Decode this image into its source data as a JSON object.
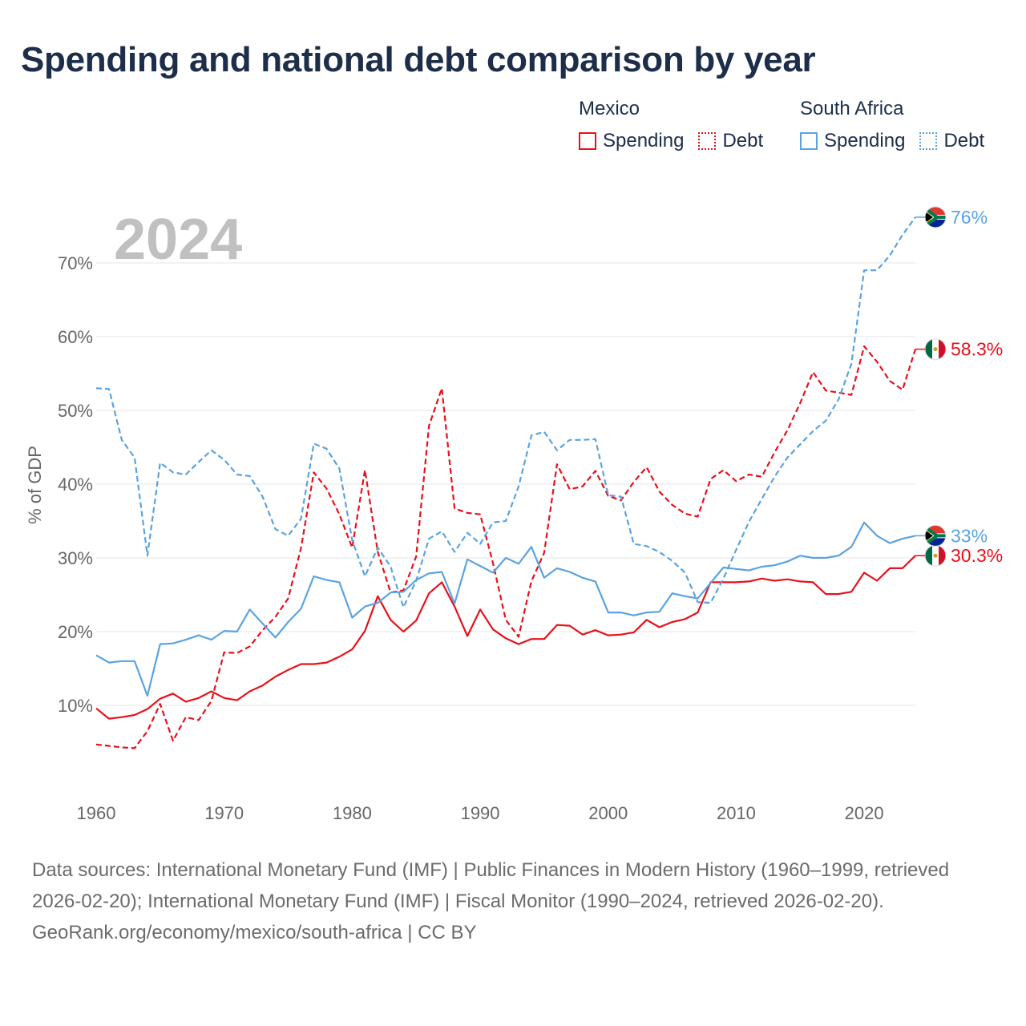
{
  "title": "Spending and national debt comparison by year",
  "legend": {
    "groups": [
      {
        "country": "Mexico",
        "items": [
          "Spending",
          "Debt"
        ]
      },
      {
        "country": "South Africa",
        "items": [
          "Spending",
          "Debt"
        ]
      }
    ]
  },
  "colors": {
    "mexico": "#e8101a",
    "south_africa": "#5aa3e0",
    "title": "#1d2e4a",
    "year_watermark": "#c0c0c0",
    "grid": "#e6e6e6",
    "axis_text": "#666666"
  },
  "footer": {
    "sources": "Data sources: International Monetary Fund (IMF) | Public Finances in Modern History (1960–1999, retrieved 2026-02-20); International Monetary Fund (IMF) | Fiscal Monitor (1990–2024, retrieved 2026-02-20).",
    "attribution": "GeoRank.org/economy/mexico/south-africa | CC BY"
  },
  "chart_data": {
    "type": "line",
    "year_label": "2024",
    "ylabel": "% of GDP",
    "xlabel": "",
    "xlim": [
      1960,
      2024
    ],
    "ylim": [
      0,
      78
    ],
    "x_ticks": [
      1960,
      1970,
      1980,
      1990,
      2000,
      2010,
      2020
    ],
    "x_tick_labels": [
      "1960",
      "1970",
      "1980",
      "1990",
      "2000",
      "2010",
      "2020"
    ],
    "y_ticks": [
      10,
      20,
      30,
      40,
      50,
      60,
      70
    ],
    "y_tick_labels": [
      "10%",
      "20%",
      "30%",
      "40%",
      "50%",
      "60%",
      "70%"
    ],
    "x": [
      1960,
      1961,
      1962,
      1963,
      1964,
      1965,
      1966,
      1967,
      1968,
      1969,
      1970,
      1971,
      1972,
      1973,
      1974,
      1975,
      1976,
      1977,
      1978,
      1979,
      1980,
      1981,
      1982,
      1983,
      1984,
      1985,
      1986,
      1987,
      1988,
      1989,
      1990,
      1991,
      1992,
      1993,
      1994,
      1995,
      1996,
      1997,
      1998,
      1999,
      2000,
      2001,
      2002,
      2003,
      2004,
      2005,
      2006,
      2007,
      2008,
      2009,
      2010,
      2011,
      2012,
      2013,
      2014,
      2015,
      2016,
      2017,
      2018,
      2019,
      2020,
      2021,
      2022,
      2023,
      2024
    ],
    "series": [
      {
        "name": "Mexico Spending",
        "country": "Mexico",
        "measure": "Spending",
        "style": "solid",
        "color": "#e8101a",
        "values": [
          9.6,
          8.2,
          8.4,
          8.7,
          9.5,
          10.9,
          11.6,
          10.5,
          11.0,
          11.9,
          11.0,
          10.7,
          11.9,
          12.7,
          13.9,
          14.8,
          15.6,
          15.6,
          15.8,
          16.6,
          17.6,
          20.1,
          24.8,
          21.6,
          20.0,
          21.5,
          25.2,
          26.7,
          23.4,
          19.4,
          23.0,
          20.3,
          19.1,
          18.3,
          19.0,
          19.0,
          20.9,
          20.8,
          19.6,
          20.2,
          19.5,
          19.6,
          19.9,
          21.6,
          20.6,
          21.3,
          21.7,
          22.6,
          26.7,
          26.7,
          26.7,
          26.8,
          27.2,
          26.9,
          27.1,
          26.8,
          26.7,
          25.1,
          25.1,
          25.4,
          28.0,
          26.9,
          28.6,
          28.6,
          30.3
        ],
        "end_label": "30.3%"
      },
      {
        "name": "Mexico Debt",
        "country": "Mexico",
        "measure": "Debt",
        "style": "dashed",
        "color": "#e8101a",
        "values": [
          4.7,
          4.5,
          4.3,
          4.2,
          6.5,
          10.2,
          5.2,
          8.4,
          8.0,
          10.6,
          17.2,
          17.1,
          18.0,
          20.2,
          22.0,
          24.5,
          31.3,
          41.6,
          39.4,
          35.9,
          31.4,
          41.9,
          30.8,
          25.3,
          25.6,
          30.2,
          47.9,
          53.0,
          36.7,
          36.1,
          35.9,
          29.3,
          21.6,
          19.3,
          26.8,
          30.7,
          42.7,
          39.3,
          39.7,
          41.8,
          38.4,
          37.8,
          40.3,
          42.3,
          39.0,
          37.2,
          36.0,
          35.6,
          40.7,
          41.9,
          40.4,
          41.3,
          41.0,
          44.3,
          47.3,
          51.0,
          55.2,
          52.7,
          52.4,
          52.1,
          58.7,
          56.6,
          54.0,
          52.8,
          58.3
        ],
        "end_label": "58.3%"
      },
      {
        "name": "South Africa Spending",
        "country": "South Africa",
        "measure": "Spending",
        "style": "solid",
        "color": "#5aa3e0",
        "values": [
          16.8,
          15.8,
          16.0,
          16.0,
          11.3,
          18.3,
          18.4,
          18.9,
          19.5,
          18.9,
          20.1,
          20.0,
          23.0,
          21.1,
          19.2,
          21.3,
          23.1,
          27.5,
          27.0,
          26.7,
          21.9,
          23.4,
          23.9,
          25.3,
          25.4,
          27.0,
          27.9,
          28.1,
          23.8,
          29.8,
          28.9,
          28.0,
          30.0,
          29.2,
          31.5,
          27.3,
          28.6,
          28.1,
          27.3,
          26.8,
          22.6,
          22.6,
          22.2,
          22.6,
          22.7,
          25.2,
          24.8,
          24.5,
          26.6,
          28.7,
          28.5,
          28.3,
          28.8,
          29.0,
          29.5,
          30.3,
          30.0,
          30.0,
          30.3,
          31.5,
          34.8,
          33.0,
          32.0,
          32.6,
          33.0
        ],
        "end_label": "33%"
      },
      {
        "name": "South Africa Debt",
        "country": "South Africa",
        "measure": "Debt",
        "style": "dashed",
        "color": "#5aa3e0",
        "values": [
          53.0,
          52.9,
          46.0,
          43.6,
          30.3,
          42.9,
          41.6,
          41.3,
          43.0,
          44.6,
          43.3,
          41.3,
          41.1,
          38.3,
          33.9,
          33.0,
          35.3,
          45.5,
          44.8,
          42.1,
          32.4,
          27.5,
          31.4,
          28.8,
          23.3,
          26.9,
          32.6,
          33.6,
          30.8,
          33.4,
          31.9,
          34.8,
          35.0,
          39.7,
          46.6,
          47.1,
          44.6,
          46.0,
          46.0,
          46.1,
          38.5,
          38.3,
          31.9,
          31.6,
          30.8,
          29.6,
          28.0,
          24.0,
          23.9,
          27.2,
          31.1,
          34.9,
          38.0,
          41.0,
          43.6,
          45.4,
          47.2,
          48.6,
          51.5,
          56.3,
          69.0,
          69.0,
          71.0,
          73.8,
          76.2
        ],
        "end_label": "76%"
      }
    ]
  }
}
